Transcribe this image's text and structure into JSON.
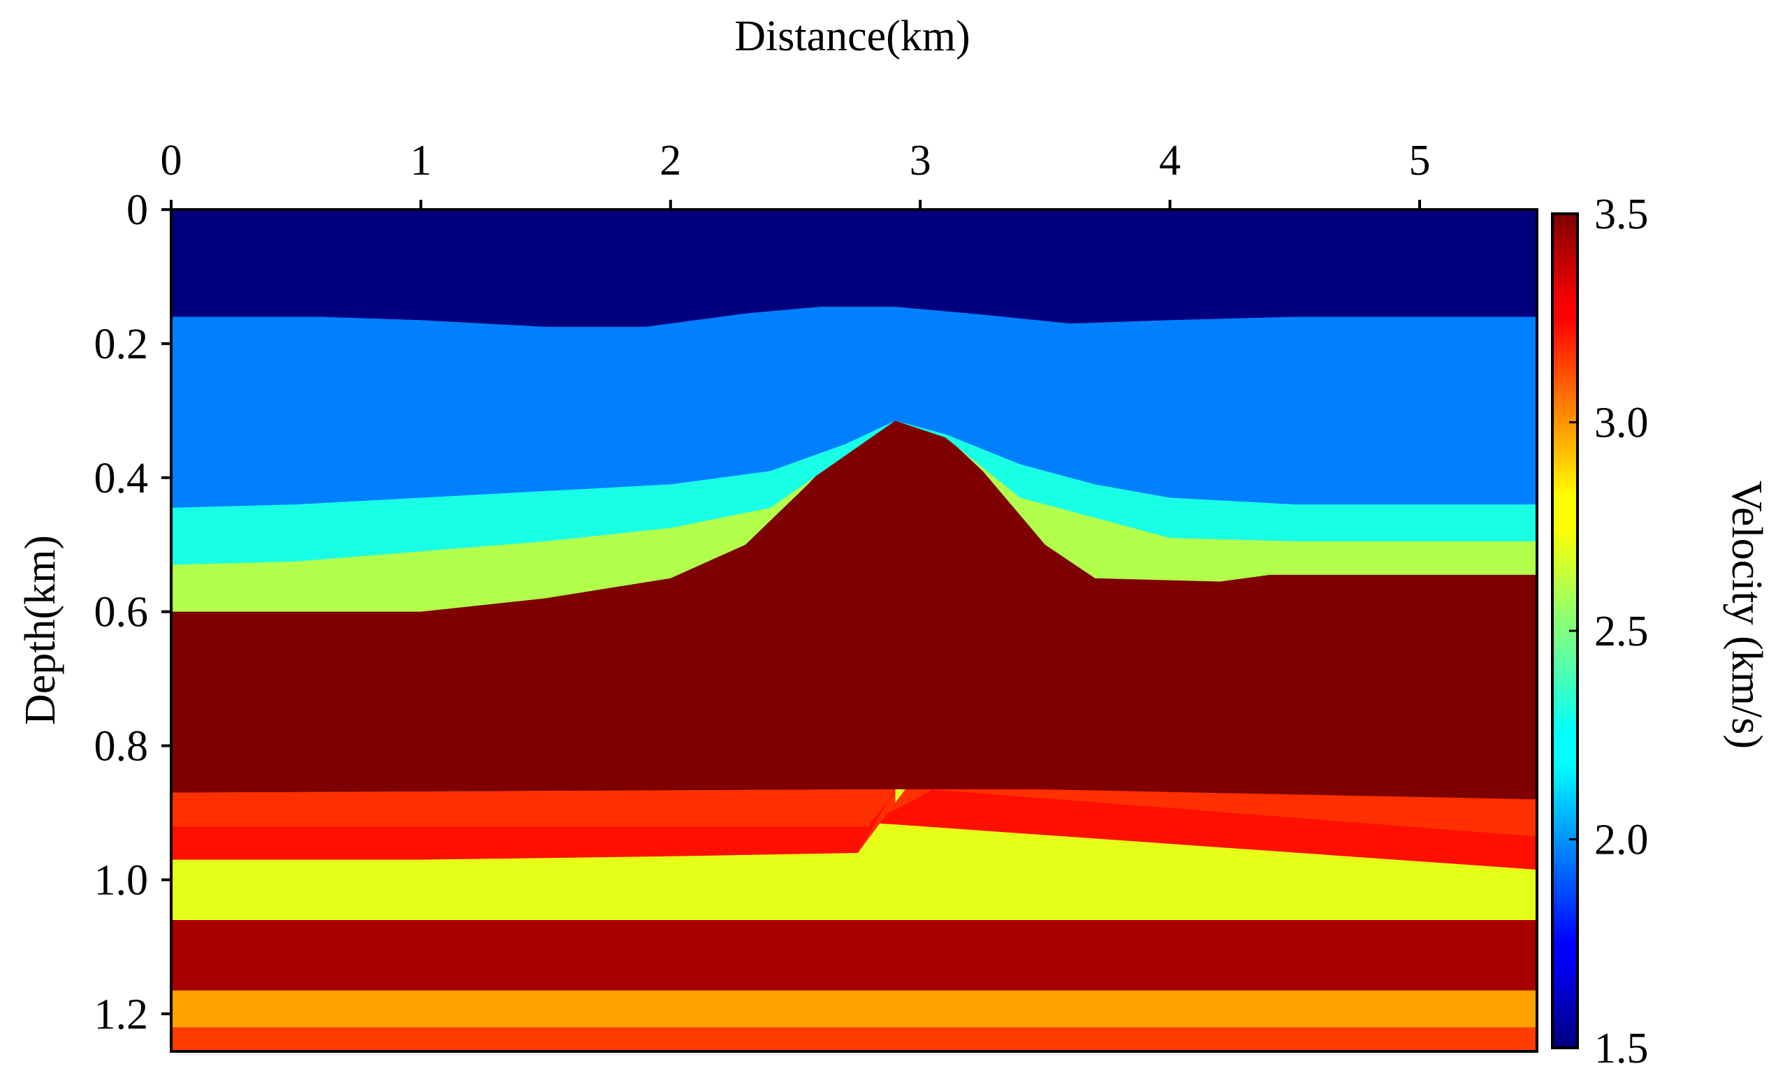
{
  "chart_data": {
    "type": "heatmap",
    "title": "",
    "xlabel": "Distance(km)",
    "ylabel": "Depth(km)",
    "colorbar_label": "Velocity (km/s)",
    "xlim": [
      0,
      5.47
    ],
    "ylim": [
      0,
      1.256
    ],
    "x_ticks": [
      0,
      1,
      2,
      3,
      4,
      5
    ],
    "x_tick_labels": [
      "0",
      "1",
      "2",
      "3",
      "4",
      "5"
    ],
    "y_ticks": [
      0,
      0.2,
      0.4,
      0.6,
      0.8,
      1.0,
      1.2
    ],
    "y_tick_labels": [
      "0",
      "0.2",
      "0.4",
      "0.6",
      "0.8",
      "1.0",
      "1.2"
    ],
    "colorbar_range": [
      1.5,
      3.5
    ],
    "colorbar_ticks": [
      1.5,
      2.0,
      2.5,
      3.0,
      3.5
    ],
    "colorbar_tick_labels": [
      "1.5",
      "2.0",
      "2.5",
      "3.0",
      "3.5"
    ],
    "colormap": "jet",
    "layers": [
      {
        "name": "water",
        "velocity": 1.5,
        "color": "#00007f",
        "bottom": [
          [
            0,
            0.16
          ],
          [
            0.6,
            0.16
          ],
          [
            1,
            0.165
          ],
          [
            1.5,
            0.175
          ],
          [
            1.9,
            0.175
          ],
          [
            2.3,
            0.155
          ],
          [
            2.6,
            0.145
          ],
          [
            2.9,
            0.145
          ],
          [
            3.2,
            0.155
          ],
          [
            3.6,
            0.17
          ],
          [
            4,
            0.165
          ],
          [
            4.5,
            0.16
          ],
          [
            5.47,
            0.16
          ]
        ]
      },
      {
        "name": "layer-2",
        "velocity": 2.0,
        "color": "#0080ff",
        "bottom": [
          [
            0,
            0.445
          ],
          [
            0.5,
            0.44
          ],
          [
            1,
            0.43
          ],
          [
            1.5,
            0.42
          ],
          [
            2,
            0.41
          ],
          [
            2.4,
            0.39
          ],
          [
            2.7,
            0.35
          ],
          [
            2.9,
            0.315
          ],
          [
            3.1,
            0.335
          ],
          [
            3.4,
            0.38
          ],
          [
            3.7,
            0.41
          ],
          [
            4,
            0.43
          ],
          [
            4.5,
            0.44
          ],
          [
            5.47,
            0.44
          ]
        ]
      },
      {
        "name": "layer-3",
        "velocity": 2.25,
        "color": "#19ffe6",
        "bottom": [
          [
            0,
            0.53
          ],
          [
            0.5,
            0.525
          ],
          [
            1,
            0.51
          ],
          [
            1.5,
            0.495
          ],
          [
            2,
            0.475
          ],
          [
            2.4,
            0.445
          ],
          [
            2.65,
            0.38
          ],
          [
            2.9,
            0.315
          ],
          [
            3.1,
            0.34
          ],
          [
            3.4,
            0.43
          ],
          [
            3.7,
            0.46
          ],
          [
            4,
            0.49
          ],
          [
            4.5,
            0.495
          ],
          [
            5.47,
            0.495
          ]
        ]
      },
      {
        "name": "layer-4",
        "velocity": 2.6,
        "color": "#b2ff4c",
        "bottom": [
          [
            0,
            0.6
          ],
          [
            1,
            0.6
          ],
          [
            1.5,
            0.58
          ],
          [
            2,
            0.55
          ],
          [
            2.3,
            0.5
          ],
          [
            2.55,
            0.41
          ],
          [
            2.75,
            0.33
          ],
          [
            2.9,
            0.31
          ],
          [
            3.05,
            0.32
          ],
          [
            3.25,
            0.39
          ],
          [
            3.5,
            0.5
          ],
          [
            3.7,
            0.55
          ],
          [
            4.2,
            0.555
          ],
          [
            4.4,
            0.545
          ],
          [
            5.47,
            0.545
          ]
        ]
      },
      {
        "name": "salt-dome",
        "velocity": 3.5,
        "color": "#7f0000",
        "bottom": [
          [
            0,
            0.87
          ],
          [
            2.9,
            0.865
          ],
          [
            3.47,
            0.865
          ],
          [
            5.47,
            0.88
          ]
        ]
      },
      {
        "name": "fault-block-upper-right",
        "velocity": 3.3,
        "color": "#ff3000",
        "block": "right",
        "top": [
          [
            3.05,
            0.81
          ],
          [
            5.47,
            0.88
          ]
        ],
        "bottom": [
          [
            3.05,
            0.865
          ],
          [
            5.47,
            0.935
          ]
        ]
      },
      {
        "name": "fault-block-upper-left",
        "velocity": 3.3,
        "color": "#ff3000",
        "block": "left",
        "top": [
          [
            0,
            0.87
          ],
          [
            2.9,
            0.865
          ]
        ],
        "bottom": [
          [
            0,
            0.92
          ],
          [
            2.9,
            0.92
          ]
        ]
      },
      {
        "name": "fault-block-middle-left",
        "velocity": 3.35,
        "color": "#ff0f00",
        "block": "left",
        "top": [
          [
            0,
            0.92
          ],
          [
            2.9,
            0.92
          ]
        ],
        "bottom": [
          [
            0,
            0.97
          ],
          [
            1,
            0.97
          ],
          [
            2,
            0.965
          ],
          [
            2.75,
            0.96
          ]
        ]
      },
      {
        "name": "fault-block-middle-right",
        "velocity": 3.35,
        "color": "#ff0f00",
        "block": "right",
        "top": [
          [
            3.05,
            0.865
          ],
          [
            5.47,
            0.935
          ]
        ],
        "bottom": [
          [
            2.8,
            0.915
          ],
          [
            5.47,
            0.985
          ]
        ]
      },
      {
        "name": "yellow-layer",
        "velocity": 2.85,
        "color": "#e6ff19",
        "bottom": [
          [
            0,
            1.06
          ],
          [
            5.47,
            1.06
          ]
        ]
      },
      {
        "name": "deep-red-layer",
        "velocity": 3.45,
        "color": "#a80000",
        "bottom": [
          [
            0,
            1.165
          ],
          [
            5.47,
            1.165
          ]
        ]
      },
      {
        "name": "orange-layer",
        "velocity": 3.05,
        "color": "#ffa200",
        "bottom": [
          [
            0,
            1.22
          ],
          [
            5.47,
            1.22
          ]
        ]
      },
      {
        "name": "bottom-layer",
        "velocity": 3.2,
        "color": "#ff3c00",
        "bottom": [
          [
            0,
            1.256
          ],
          [
            5.47,
            1.256
          ]
        ]
      }
    ],
    "fault": {
      "top": [
        3.05,
        0.81
      ],
      "bottom": [
        2.75,
        0.96
      ]
    }
  }
}
